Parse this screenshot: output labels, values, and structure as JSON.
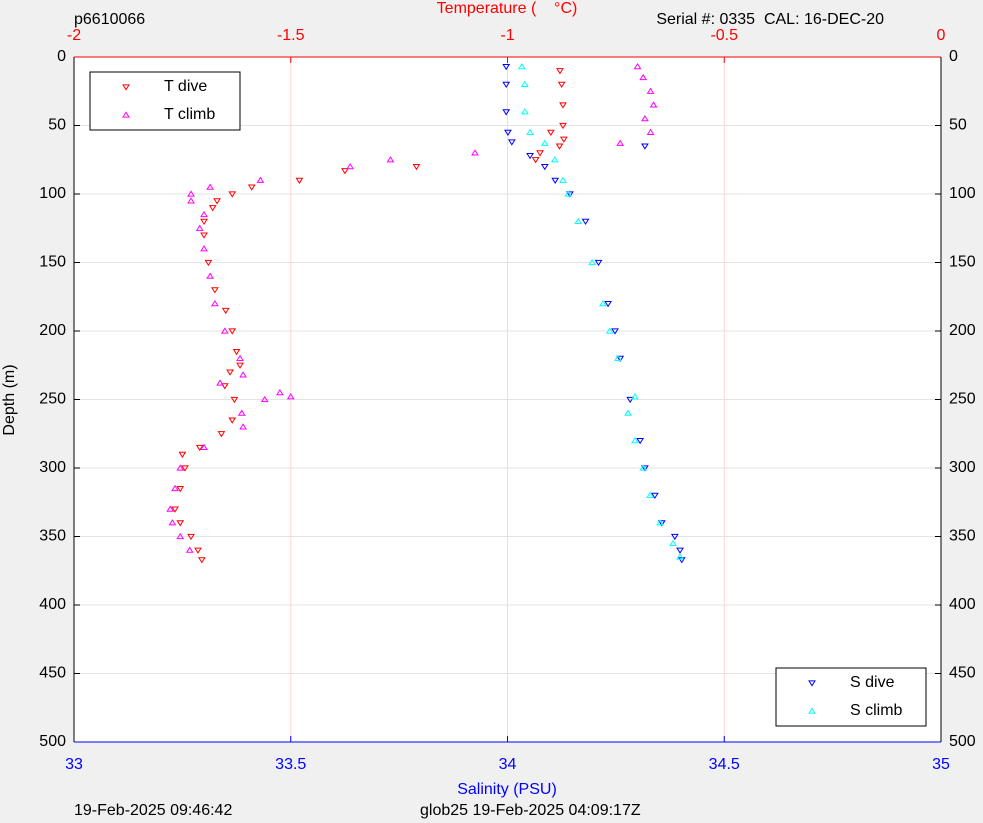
{
  "chart_data": {
    "type": "scatter",
    "title": "Temperature (    °C)",
    "top_left_text": "p6610066",
    "top_right_text": "Serial #: 0335  CAL: 16-DEC-20",
    "x_label": "Salinity (PSU)",
    "y_label": "Depth (m)",
    "footer_left": "19-Feb-2025 09:46:42",
    "footer_right": "glob25 19-Feb-2025 04:09:17Z",
    "xlim": [
      33,
      35
    ],
    "xticks": [
      33,
      33.5,
      34,
      34.5,
      35
    ],
    "x_color": "#0000ff",
    "x2lim": [
      -2,
      0
    ],
    "x2ticks": [
      -2,
      -1.5,
      -1,
      -0.5,
      0
    ],
    "x2_color": "#ff0000",
    "ylim": [
      0,
      500
    ],
    "yticks": [
      0,
      50,
      100,
      150,
      200,
      250,
      300,
      350,
      400,
      450,
      500
    ],
    "y_reversed": true,
    "grid": true,
    "series": [
      {
        "name": "T dive",
        "color": "#ff0000",
        "marker": "v",
        "axis": "x2",
        "legend": "upper left",
        "x": [
          -0.879,
          -0.875,
          -0.872,
          -0.872,
          -0.9,
          -0.87,
          -0.88,
          -0.925,
          -0.935,
          -1.21,
          -1.375,
          -1.48,
          -1.59,
          -1.635,
          -1.67,
          -1.68,
          -1.7,
          -1.7,
          -1.69,
          -1.675,
          -1.65,
          -1.635,
          -1.625,
          -1.617,
          -1.64,
          -1.652,
          -1.63,
          -1.635,
          -1.66,
          -1.71,
          -1.75,
          -1.744,
          -1.755,
          -1.767,
          -1.755,
          -1.73,
          -1.714,
          -1.705
        ],
        "values": [
          10,
          20,
          35,
          50,
          55,
          60,
          65,
          70,
          75,
          80,
          83,
          90,
          95,
          100,
          105,
          110,
          120,
          130,
          150,
          170,
          185,
          200,
          215,
          225,
          230,
          240,
          250,
          265,
          275,
          285,
          290,
          300,
          315,
          330,
          340,
          350,
          360,
          367
        ]
      },
      {
        "name": "T climb",
        "color": "#ff00ff",
        "marker": "^",
        "axis": "x2",
        "legend": "upper left",
        "x": [
          -0.7,
          -0.687,
          -0.67,
          -0.663,
          -0.683,
          -0.67,
          -0.74,
          -1.075,
          -1.27,
          -1.363,
          -1.57,
          -1.686,
          -1.73,
          -1.73,
          -1.7,
          -1.71,
          -1.7,
          -1.686,
          -1.675,
          -1.652,
          -1.617,
          -1.61,
          -1.663,
          -1.525,
          -1.5,
          -1.56,
          -1.613,
          -1.61,
          -1.7,
          -1.755,
          -1.767,
          -1.778,
          -1.773,
          -1.755,
          -1.733
        ],
        "values": [
          7,
          15,
          25,
          35,
          45,
          55,
          63,
          70,
          75,
          80,
          90,
          95,
          100,
          105,
          115,
          125,
          140,
          160,
          180,
          200,
          220,
          232,
          238,
          245,
          248,
          250,
          260,
          270,
          285,
          300,
          315,
          330,
          340,
          350,
          360
        ]
      },
      {
        "name": "S dive",
        "color": "#0000ff",
        "marker": "v",
        "axis": "x",
        "legend": "lower right",
        "x": [
          33.997,
          33.997,
          33.997,
          34.001,
          34.01,
          34.317,
          34.052,
          34.086,
          34.11,
          34.144,
          34.18,
          34.21,
          34.232,
          34.248,
          34.26,
          34.283,
          34.306,
          34.317,
          34.34,
          34.356,
          34.386,
          34.398,
          34.402
        ],
        "values": [
          7,
          20,
          40,
          55,
          62,
          65,
          72,
          80,
          90,
          100,
          120,
          150,
          180,
          200,
          220,
          250,
          280,
          300,
          320,
          340,
          350,
          360,
          367
        ]
      },
      {
        "name": "S climb",
        "color": "#00ffff",
        "marker": "^",
        "axis": "x",
        "legend": "lower right",
        "x": [
          34.033,
          34.04,
          34.04,
          34.052,
          34.086,
          34.109,
          34.128,
          34.14,
          34.163,
          34.195,
          34.22,
          34.236,
          34.255,
          34.294,
          34.278,
          34.294,
          34.313,
          34.329,
          34.352,
          34.382,
          34.398
        ],
        "values": [
          7,
          20,
          40,
          55,
          63,
          75,
          90,
          100,
          120,
          150,
          180,
          200,
          220,
          248,
          260,
          280,
          300,
          320,
          340,
          355,
          365
        ]
      }
    ]
  }
}
